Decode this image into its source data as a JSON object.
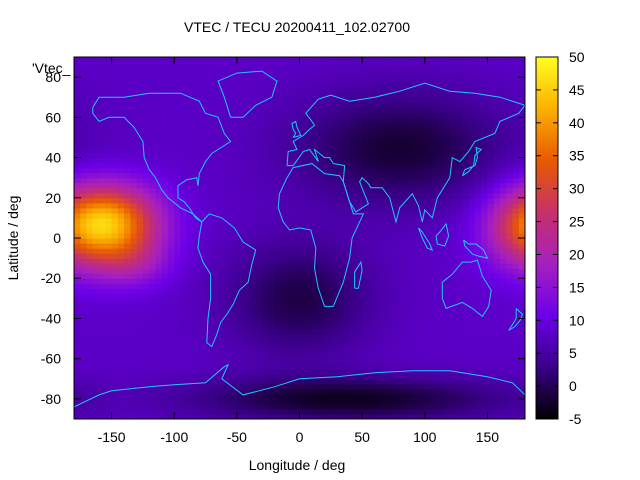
{
  "chart_data": {
    "type": "heatmap",
    "title": "VTEC / TECU 20200411_102.02700",
    "xlabel": "Longitude / deg",
    "ylabel": "Latitude / deg",
    "xlim": [
      -180,
      180
    ],
    "ylim": [
      -90,
      90
    ],
    "x_ticks": [
      -150,
      -100,
      -50,
      0,
      50,
      100,
      150
    ],
    "y_ticks": [
      -80,
      -60,
      -40,
      -20,
      0,
      20,
      40,
      60,
      80
    ],
    "colorbar": {
      "range": [
        -5,
        50
      ],
      "ticks": [
        -5,
        0,
        5,
        10,
        15,
        20,
        25,
        30,
        35,
        40,
        45,
        50
      ],
      "palette": [
        "#000000",
        "#3a0088",
        "#6d00e8",
        "#a620c0",
        "#c8306a",
        "#e85a00",
        "#fbb000",
        "#ffff20"
      ]
    },
    "legend": "'Vtec_",
    "background_value": 8,
    "features": [
      {
        "name": "peak-pacific",
        "lon": -150,
        "lat": 8,
        "sigma_lon": 28,
        "sigma_lat": 13,
        "value": 38
      },
      {
        "name": "peak-pacific-south",
        "lon": -135,
        "lat": -12,
        "sigma_lon": 22,
        "sigma_lat": 9,
        "value": 16
      },
      {
        "name": "peak-west-pacific",
        "lon": 180,
        "lat": 5,
        "sigma_lon": 25,
        "sigma_lat": 15,
        "value": 22
      },
      {
        "name": "minimum-south-pole",
        "lon": 40,
        "lat": -80,
        "sigma_lon": 90,
        "sigma_lat": 8,
        "value": -3
      },
      {
        "name": "minimum-eurasia",
        "lon": 80,
        "lat": 45,
        "sigma_lon": 60,
        "sigma_lat": 20,
        "value": -2
      },
      {
        "name": "minimum-south-atlantic",
        "lon": 0,
        "lat": -30,
        "sigma_lon": 40,
        "sigma_lat": 20,
        "value": -1
      }
    ]
  }
}
